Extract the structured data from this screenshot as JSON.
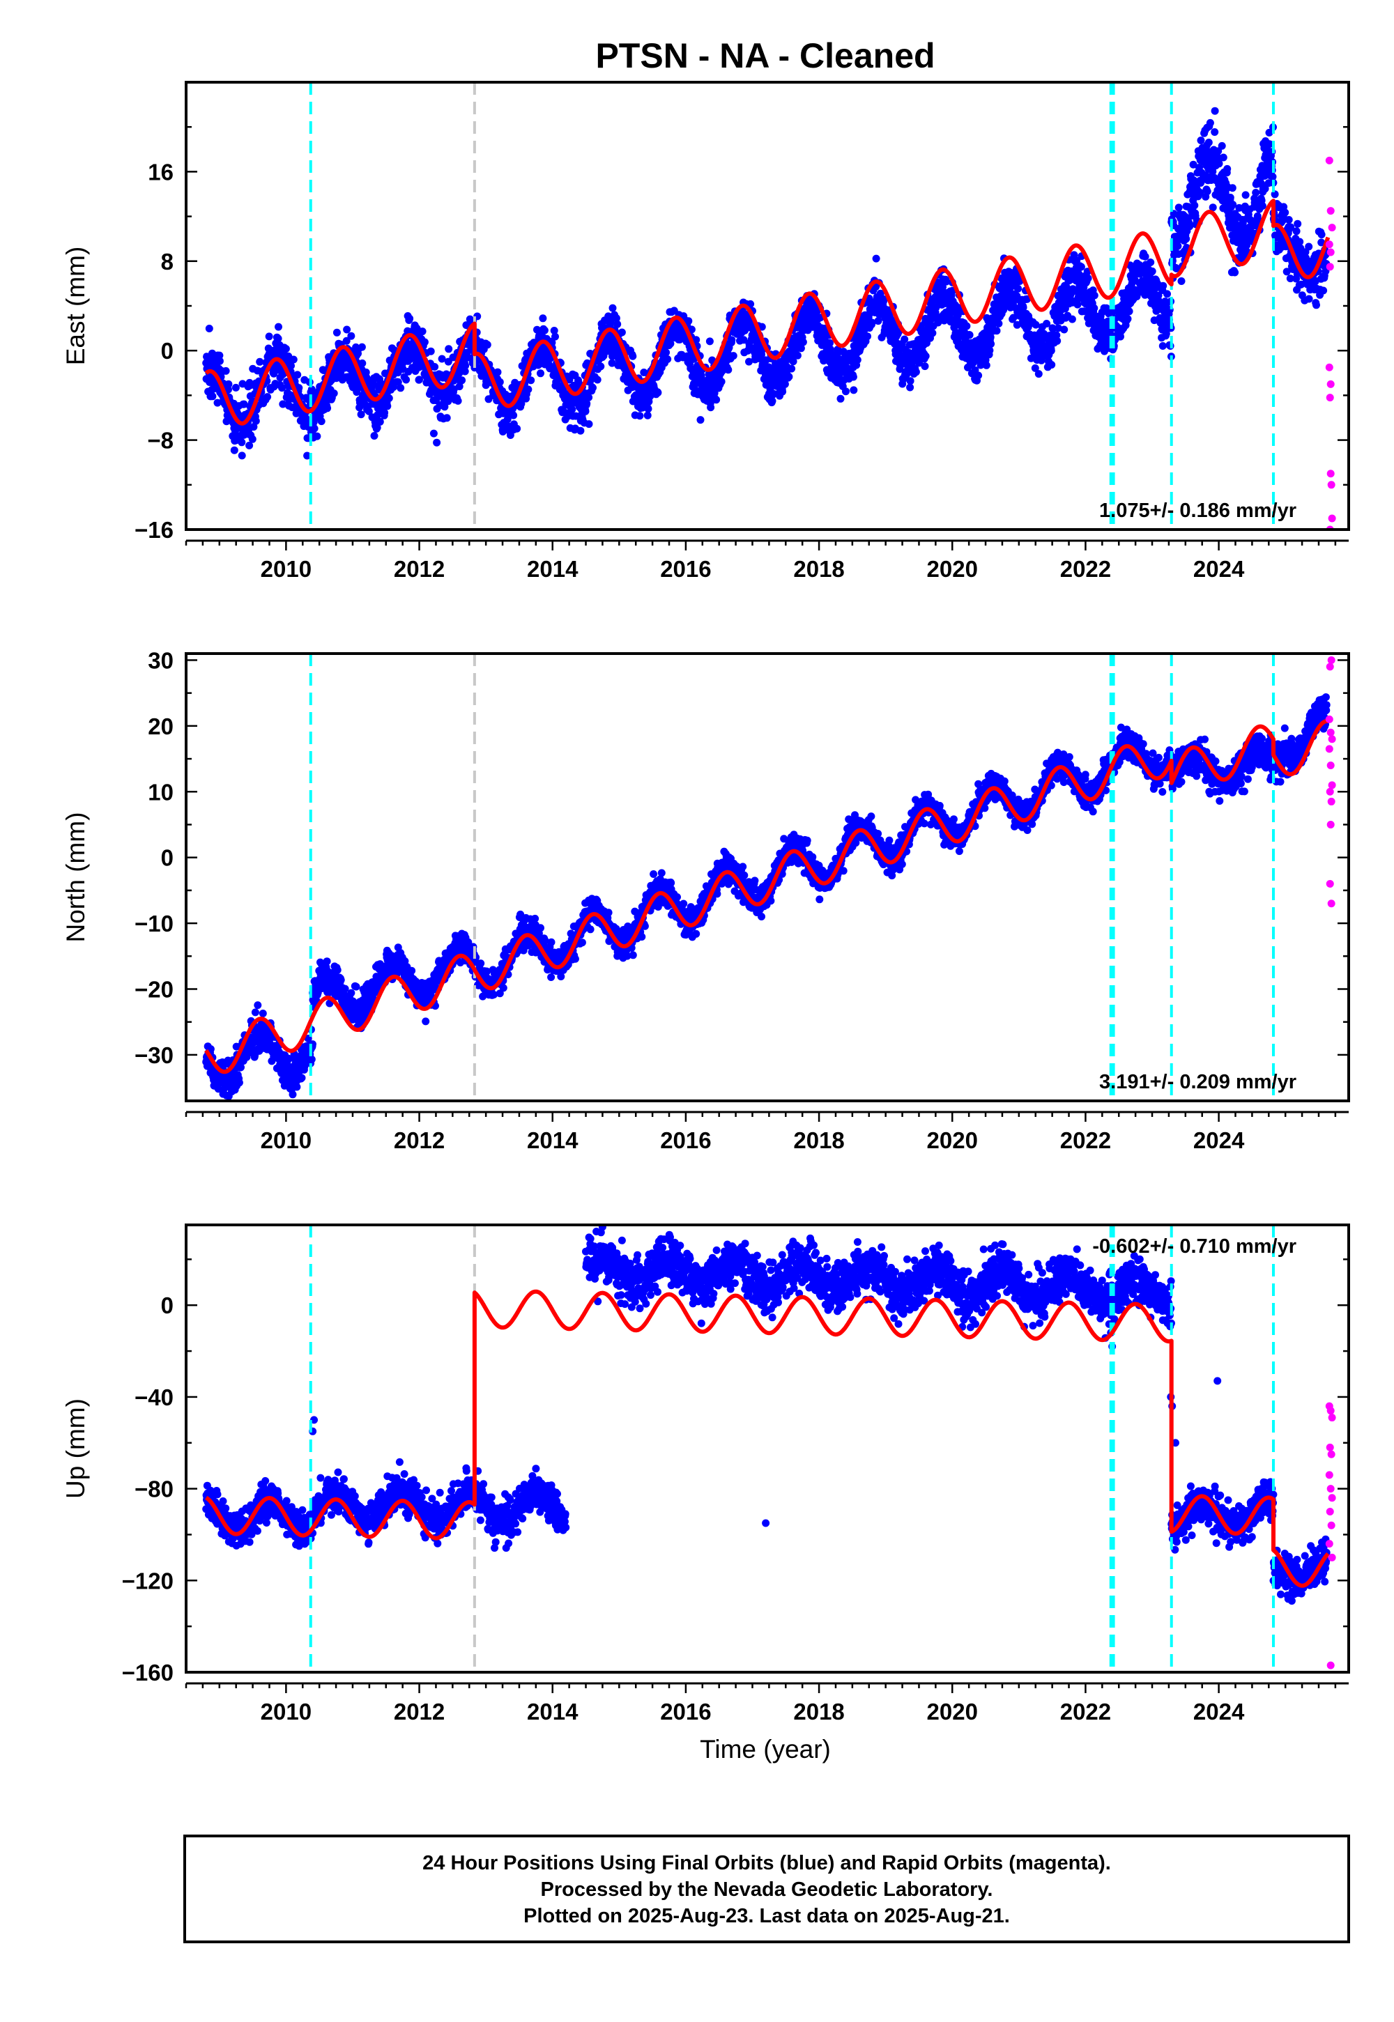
{
  "title": "PTSN  - NA - Cleaned",
  "xlabel": "Time (year)",
  "footer": [
    "24 Hour Positions Using Final Orbits (blue) and Rapid Orbits (magenta).",
    "Processed by the Nevada Geodetic Laboratory.",
    "Plotted on 2025-Aug-23. Last data on 2025-Aug-21."
  ],
  "colors": {
    "final": "#0000ff",
    "rapid": "#ff00ff",
    "model": "#ff0000",
    "equipment_change": "#00ffff",
    "earthquake": "#c8c8c8"
  },
  "chart_data": [
    {
      "type": "scatter",
      "panel": "east",
      "ylabel": "East (mm)",
      "xlim": [
        2008.5,
        2025.95
      ],
      "ylim": [
        -16,
        24
      ],
      "xticks": [
        2010,
        2012,
        2014,
        2016,
        2018,
        2020,
        2022,
        2024
      ],
      "xtick_labels": [
        "2010",
        "2012",
        "2014",
        "2016",
        "2018",
        "2020",
        "2022",
        "2024"
      ],
      "yticks": [
        -16,
        -8,
        0,
        8,
        16
      ],
      "ytick_labels": [
        "−16",
        "−8",
        "0",
        "8",
        "16"
      ],
      "rate_text": "1.075+/- 0.186 mm/yr",
      "model": {
        "segments": [
          [
            2008.8,
            2012.83
          ],
          [
            2012.83,
            2023.29
          ],
          [
            2023.29,
            2024.82
          ],
          [
            2024.82,
            2025.64
          ]
        ],
        "offsets_mm": [
          -4.5,
          -2.9,
          9.2,
          8.6
        ],
        "slope_mm_per_yr": 1.075,
        "annual_amplitude_mm": 2.6,
        "annual_phase_year": 0.6
      },
      "final_series": [
        {
          "range": [
            2008.8,
            2010.4
          ],
          "level": [
            -4.5,
            -3.0
          ],
          "seasonal": 2.8,
          "noise": 1.3
        },
        {
          "range": [
            2010.4,
            2012.83
          ],
          "level": [
            -3.5,
            -1.0
          ],
          "seasonal": 2.4,
          "noise": 1.2
        },
        {
          "range": [
            2012.83,
            2023.29
          ],
          "level": [
            -3.0,
            4.5
          ],
          "seasonal": 2.8,
          "noise": 1.1
        },
        {
          "range": [
            2023.29,
            2024.82
          ],
          "level": [
            13.0,
            14.0
          ],
          "seasonal": 3.8,
          "noise": 1.6
        },
        {
          "range": [
            2024.82,
            2025.62
          ],
          "level": [
            10.0,
            7.5
          ],
          "seasonal": 1.5,
          "noise": 1.5
        }
      ],
      "rapid_points": [
        [
          2025.66,
          17
        ],
        [
          2025.68,
          12.5
        ],
        [
          2025.7,
          11
        ],
        [
          2025.66,
          9.5
        ],
        [
          2025.68,
          8.8
        ],
        [
          2025.67,
          7.5
        ],
        [
          2025.66,
          -1.5
        ],
        [
          2025.68,
          -3
        ],
        [
          2025.67,
          -4.2
        ],
        [
          2025.68,
          -11
        ],
        [
          2025.69,
          -12
        ],
        [
          2025.7,
          -15
        ],
        [
          2025.67,
          -16
        ]
      ]
    },
    {
      "type": "scatter",
      "panel": "north",
      "ylabel": "North (mm)",
      "xlim": [
        2008.5,
        2025.95
      ],
      "ylim": [
        -37,
        31
      ],
      "xticks": [
        2010,
        2012,
        2014,
        2016,
        2018,
        2020,
        2022,
        2024
      ],
      "xtick_labels": [
        "2010",
        "2012",
        "2014",
        "2016",
        "2018",
        "2020",
        "2022",
        "2024"
      ],
      "yticks": [
        -30,
        -20,
        -10,
        0,
        10,
        20,
        30
      ],
      "ytick_labels": [
        "−30",
        "−20",
        "−10",
        "0",
        "10",
        "20",
        "30"
      ],
      "rate_text": "3.191+/- 0.209 mm/yr",
      "model": {
        "segments": [
          [
            2008.8,
            2012.83
          ],
          [
            2012.83,
            2023.29
          ],
          [
            2023.29,
            2024.82
          ],
          [
            2024.82,
            2025.64
          ]
        ],
        "offsets_mm": [
          -30.3,
          -17.5,
          12.5,
          15.0
        ],
        "slope_mm_per_yr": 3.191,
        "annual_amplitude_mm": 3.2,
        "annual_phase_year": 0.35
      },
      "final_series": [
        {
          "range": [
            2008.8,
            2010.4
          ],
          "level": [
            -31.0,
            -29.0
          ],
          "seasonal": 3.3,
          "noise": 1.3
        },
        {
          "range": [
            2010.4,
            2012.83
          ],
          "level": [
            -22.0,
            -16.0
          ],
          "seasonal": 3.0,
          "noise": 1.2
        },
        {
          "range": [
            2012.83,
            2023.29
          ],
          "level": [
            -17.0,
            16.5
          ],
          "seasonal": 3.2,
          "noise": 1.1
        },
        {
          "range": [
            2023.29,
            2024.82
          ],
          "level": [
            13.0,
            14.0
          ],
          "seasonal": 2.2,
          "noise": 1.3
        },
        {
          "range": [
            2024.82,
            2025.62
          ],
          "level": [
            15.0,
            21.5
          ],
          "seasonal": 1.5,
          "noise": 1.5
        }
      ],
      "rapid_points": [
        [
          2025.67,
          29
        ],
        [
          2025.69,
          30
        ],
        [
          2025.66,
          21
        ],
        [
          2025.68,
          19
        ],
        [
          2025.7,
          18
        ],
        [
          2025.66,
          16.5
        ],
        [
          2025.68,
          14
        ],
        [
          2025.7,
          11
        ],
        [
          2025.67,
          10
        ],
        [
          2025.69,
          8.5
        ],
        [
          2025.68,
          5
        ],
        [
          2025.67,
          -4
        ],
        [
          2025.69,
          -7
        ]
      ]
    },
    {
      "type": "scatter",
      "panel": "up",
      "ylabel": "Up (mm)",
      "xlim": [
        2008.5,
        2025.95
      ],
      "ylim": [
        -160,
        35
      ],
      "xticks": [
        2010,
        2012,
        2014,
        2016,
        2018,
        2020,
        2022,
        2024
      ],
      "xtick_labels": [
        "2010",
        "2012",
        "2014",
        "2016",
        "2018",
        "2020",
        "2022",
        "2024"
      ],
      "yticks": [
        -160,
        -120,
        -80,
        -40,
        0
      ],
      "ytick_labels": [
        "−160",
        "−120",
        "−80",
        "−40",
        "0"
      ],
      "rate_text": "-0.602+/- 0.710 mm/yr",
      "model": {
        "segments": [
          [
            2008.8,
            2012.83
          ],
          [
            2012.83,
            2023.29
          ],
          [
            2023.29,
            2024.82
          ],
          [
            2024.82,
            2025.64
          ]
        ],
        "offsets_mm": [
          -91.5,
          -1.5,
          -91.0,
          -114.0
        ],
        "slope_mm_per_yr": -0.602,
        "annual_amplitude_mm": 8.0,
        "annual_phase_year": 0.5
      },
      "final_series": [
        {
          "range": [
            2008.8,
            2010.4
          ],
          "level": [
            -91.0,
            -92.0
          ],
          "seasonal": 6.0,
          "noise": 4.0
        },
        {
          "range": [
            2010.4,
            2014.2
          ],
          "level": [
            -88.0,
            -88.0
          ],
          "seasonal": 6.0,
          "noise": 4.0
        },
        {
          "range": [
            2014.5,
            2023.29
          ],
          "level": [
            16.0,
            6.0
          ],
          "seasonal": 6.0,
          "noise": 5.0
        },
        {
          "range": [
            2023.29,
            2024.82
          ],
          "level": [
            -92.0,
            -90.0
          ],
          "seasonal": 5.0,
          "noise": 4.0
        },
        {
          "range": [
            2024.82,
            2025.62
          ],
          "level": [
            -118.0,
            -112.0
          ],
          "seasonal": 4.0,
          "noise": 4.0
        }
      ],
      "isolated_points": [
        [
          2010.42,
          -50
        ],
        [
          2010.4,
          -55
        ],
        [
          2017.2,
          -95
        ],
        [
          2022.4,
          -18
        ],
        [
          2022.38,
          -12
        ],
        [
          2023.3,
          -44
        ],
        [
          2023.28,
          -40
        ],
        [
          2023.35,
          -60
        ],
        [
          2023.98,
          -33
        ]
      ],
      "rapid_points": [
        [
          2025.66,
          -44
        ],
        [
          2025.68,
          -46
        ],
        [
          2025.7,
          -49
        ],
        [
          2025.67,
          -62
        ],
        [
          2025.69,
          -65
        ],
        [
          2025.66,
          -74
        ],
        [
          2025.68,
          -80
        ],
        [
          2025.7,
          -84
        ],
        [
          2025.67,
          -90
        ],
        [
          2025.69,
          -96
        ],
        [
          2025.66,
          -104
        ],
        [
          2025.7,
          -110
        ],
        [
          2025.68,
          -157
        ]
      ]
    }
  ],
  "event_lines": {
    "equipment_change": [
      2010.37,
      2022.38,
      2022.42,
      2023.29,
      2024.82
    ],
    "earthquake": [
      2012.83
    ]
  }
}
